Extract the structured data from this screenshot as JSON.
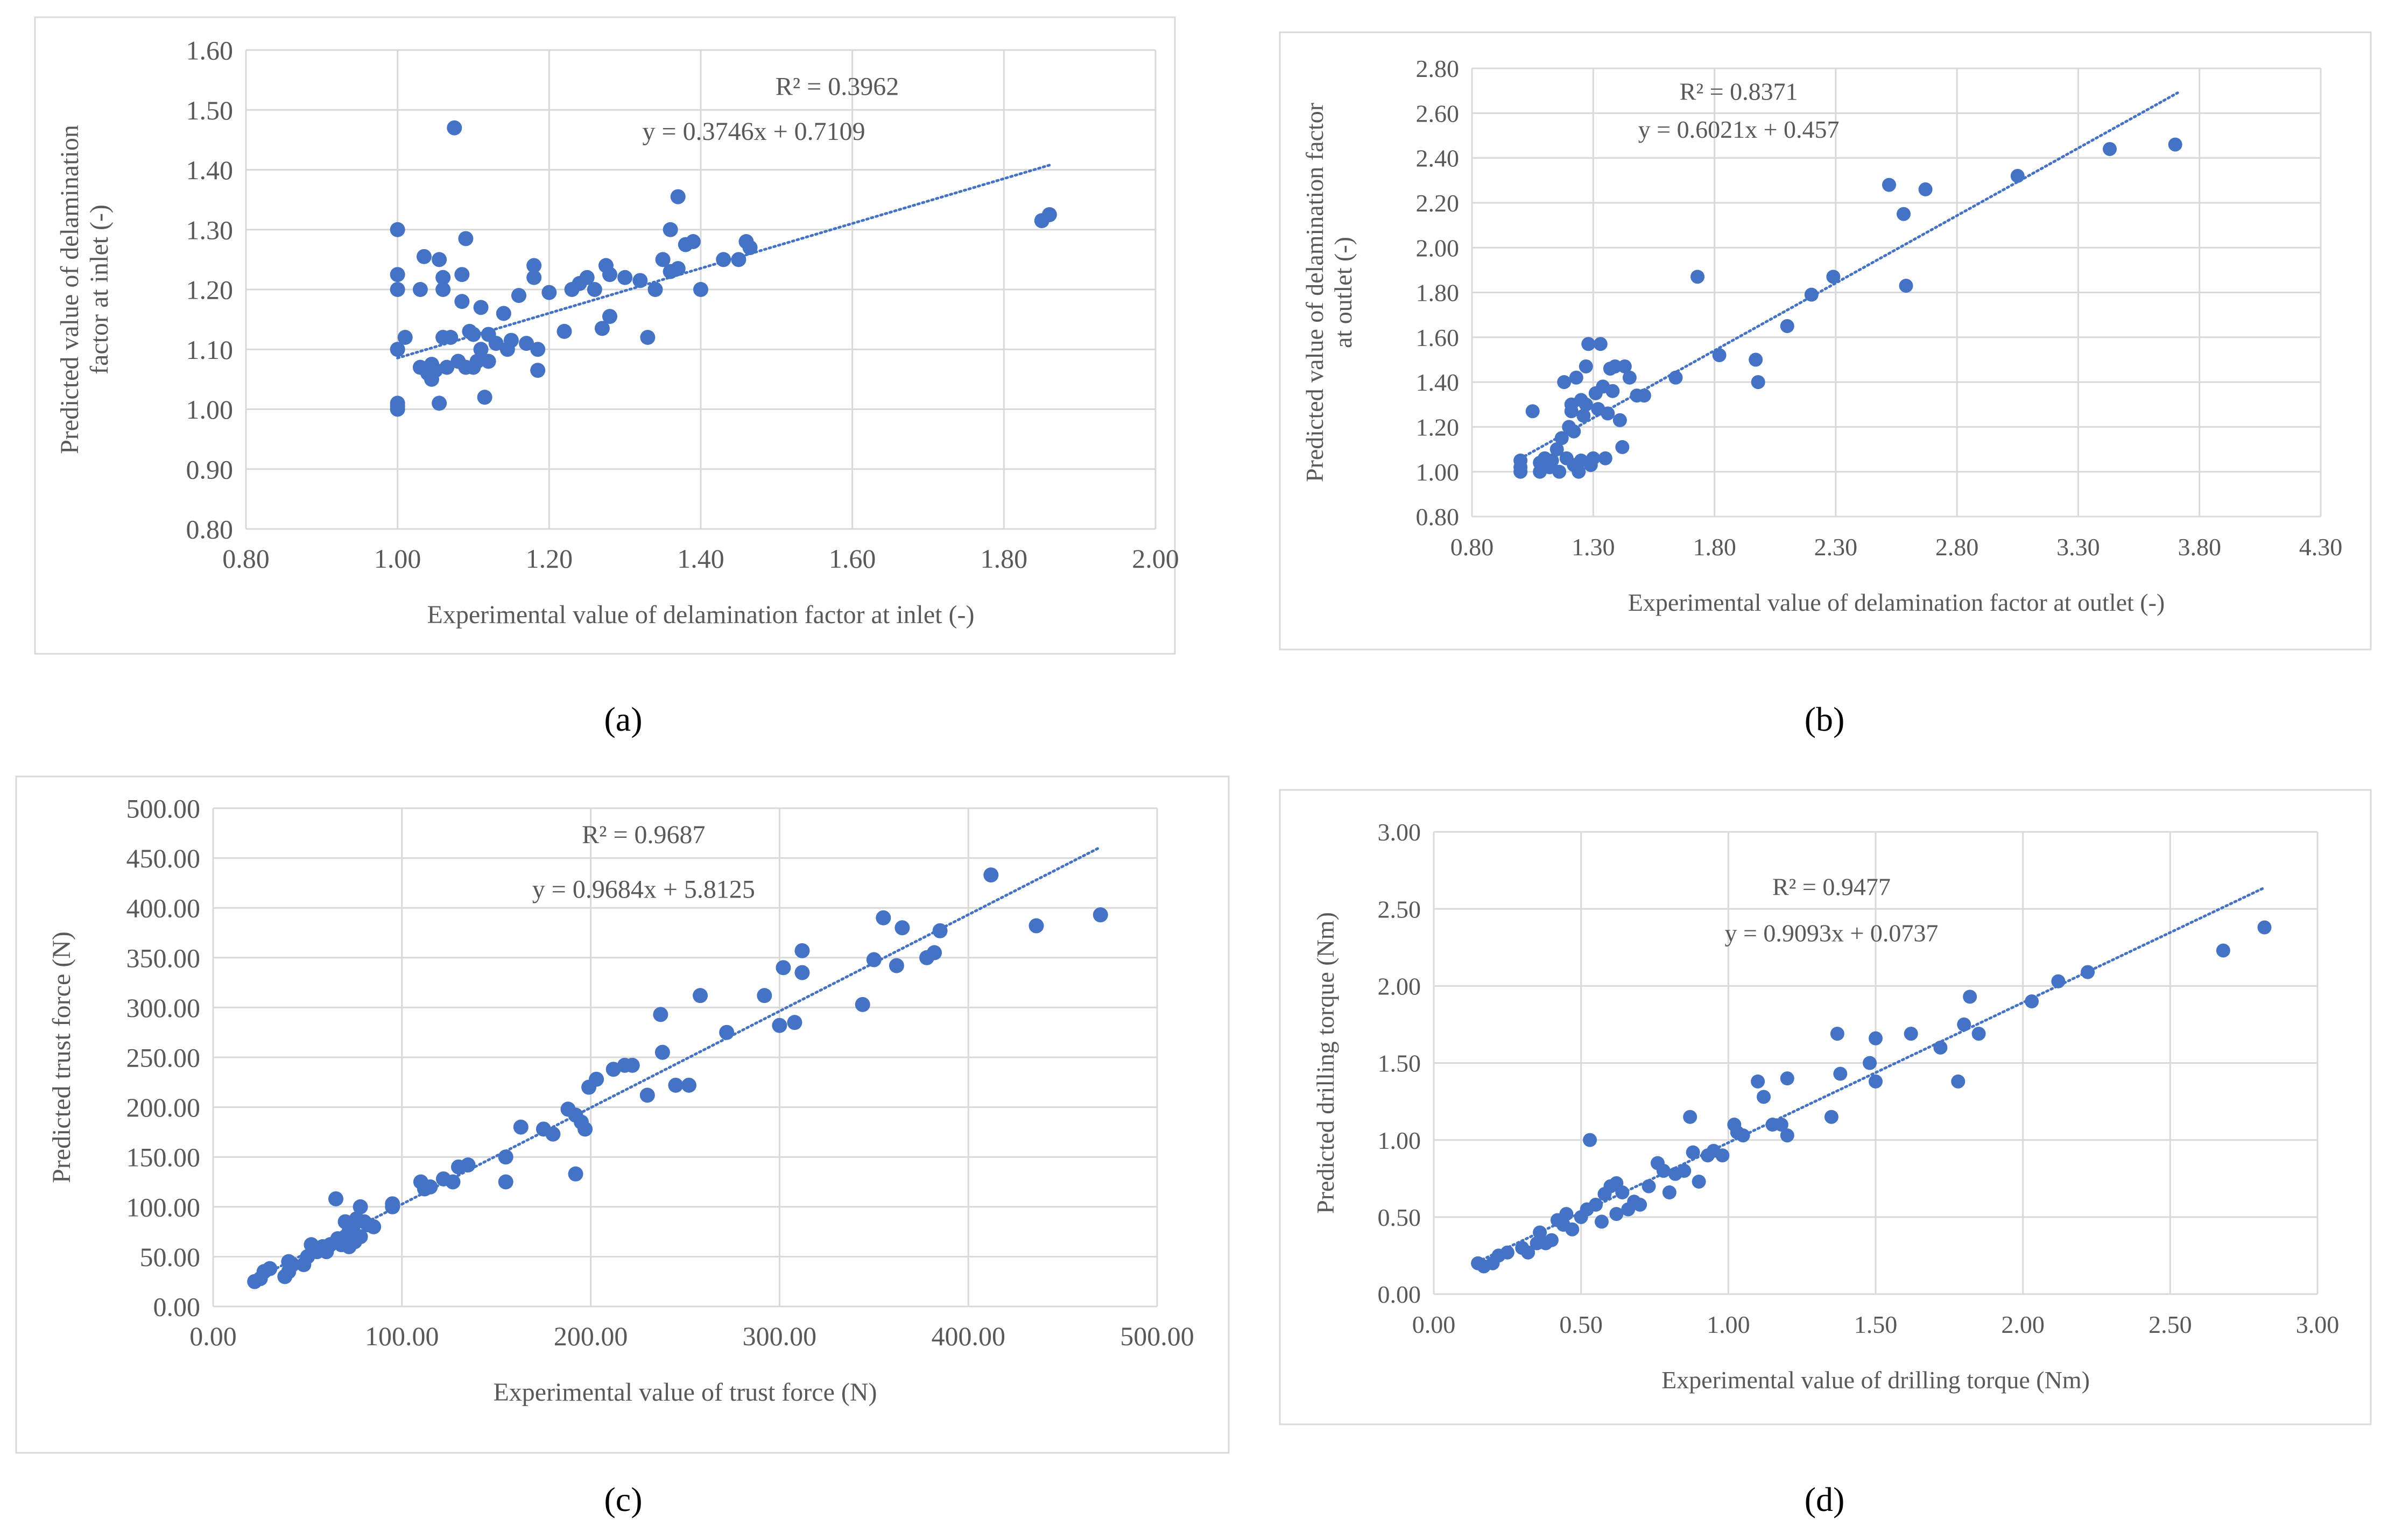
{
  "figure": {
    "panels": [
      "(a)",
      "(b)",
      "(c)",
      "(d)"
    ]
  },
  "colors": {
    "marker": "#4472c4",
    "trendline": "#4472c4",
    "grid": "#d9d9d9",
    "frame": "#d9d9d9",
    "text": "#595959"
  },
  "chart_data": [
    {
      "panel": "(a)",
      "type": "scatter",
      "xlabel": "Experimental value of delamination factor at inlet (-)",
      "ylabel": "Predicted value of delamination factor at inlet (-)",
      "ylabel_lines": [
        "Predicted value of delamination",
        "factor at inlet (-)"
      ],
      "xlim": [
        0.8,
        2.0
      ],
      "ylim": [
        0.8,
        1.6
      ],
      "xticks": [
        0.8,
        1.0,
        1.2,
        1.4,
        1.6,
        1.8,
        2.0
      ],
      "yticks": [
        0.8,
        0.9,
        1.0,
        1.1,
        1.2,
        1.3,
        1.4,
        1.5,
        1.6
      ],
      "xtick_labels": [
        "0.80",
        "1.00",
        "1.20",
        "1.40",
        "1.60",
        "1.80",
        "2.00"
      ],
      "ytick_labels": [
        "0.80",
        "0.90",
        "1.00",
        "1.10",
        "1.20",
        "1.30",
        "1.40",
        "1.50",
        "1.60"
      ],
      "r2_label": "R² = 0.3962",
      "equation_label": "y = 0.3746x + 0.7109",
      "trendline": {
        "slope": 0.3746,
        "intercept": 0.7109,
        "x_range": [
          1.0,
          1.86
        ]
      },
      "points": [
        [
          1.0,
          1.0
        ],
        [
          1.0,
          1.005
        ],
        [
          1.0,
          1.01
        ],
        [
          1.0,
          1.1
        ],
        [
          1.0,
          1.2
        ],
        [
          1.0,
          1.225
        ],
        [
          1.0,
          1.3
        ],
        [
          1.01,
          1.12
        ],
        [
          1.03,
          1.07
        ],
        [
          1.03,
          1.2
        ],
        [
          1.035,
          1.255
        ],
        [
          1.04,
          1.06
        ],
        [
          1.045,
          1.05
        ],
        [
          1.045,
          1.075
        ],
        [
          1.05,
          1.065
        ],
        [
          1.055,
          1.01
        ],
        [
          1.055,
          1.25
        ],
        [
          1.06,
          1.2
        ],
        [
          1.06,
          1.22
        ],
        [
          1.06,
          1.12
        ],
        [
          1.065,
          1.07
        ],
        [
          1.07,
          1.12
        ],
        [
          1.075,
          1.47
        ],
        [
          1.08,
          1.08
        ],
        [
          1.085,
          1.18
        ],
        [
          1.085,
          1.225
        ],
        [
          1.09,
          1.07
        ],
        [
          1.09,
          1.285
        ],
        [
          1.095,
          1.13
        ],
        [
          1.1,
          1.07
        ],
        [
          1.1,
          1.125
        ],
        [
          1.105,
          1.08
        ],
        [
          1.11,
          1.17
        ],
        [
          1.11,
          1.1
        ],
        [
          1.115,
          1.02
        ],
        [
          1.12,
          1.08
        ],
        [
          1.12,
          1.125
        ],
        [
          1.13,
          1.11
        ],
        [
          1.14,
          1.16
        ],
        [
          1.145,
          1.1
        ],
        [
          1.15,
          1.115
        ],
        [
          1.16,
          1.19
        ],
        [
          1.17,
          1.11
        ],
        [
          1.18,
          1.22
        ],
        [
          1.18,
          1.24
        ],
        [
          1.185,
          1.1
        ],
        [
          1.185,
          1.065
        ],
        [
          1.2,
          1.195
        ],
        [
          1.22,
          1.13
        ],
        [
          1.23,
          1.2
        ],
        [
          1.24,
          1.21
        ],
        [
          1.25,
          1.22
        ],
        [
          1.26,
          1.2
        ],
        [
          1.27,
          1.135
        ],
        [
          1.275,
          1.24
        ],
        [
          1.28,
          1.155
        ],
        [
          1.28,
          1.225
        ],
        [
          1.3,
          1.22
        ],
        [
          1.32,
          1.215
        ],
        [
          1.33,
          1.12
        ],
        [
          1.34,
          1.2
        ],
        [
          1.35,
          1.25
        ],
        [
          1.36,
          1.23
        ],
        [
          1.36,
          1.3
        ],
        [
          1.37,
          1.235
        ],
        [
          1.37,
          1.355
        ],
        [
          1.38,
          1.275
        ],
        [
          1.39,
          1.28
        ],
        [
          1.4,
          1.2
        ],
        [
          1.43,
          1.25
        ],
        [
          1.45,
          1.25
        ],
        [
          1.46,
          1.28
        ],
        [
          1.465,
          1.27
        ],
        [
          1.85,
          1.315
        ],
        [
          1.86,
          1.325
        ]
      ],
      "r2_pos": [
        1.58,
        1.525
      ],
      "eq_pos": [
        1.47,
        1.45
      ]
    },
    {
      "panel": "(b)",
      "type": "scatter",
      "xlabel": "Experimental value of delamination factor at outlet (-)",
      "ylabel": "Predicted value of delamination factor at outlet (-)",
      "ylabel_lines": [
        "Predicted value of delamination factor",
        "at outlet (-)"
      ],
      "xlim": [
        0.8,
        4.3
      ],
      "ylim": [
        0.8,
        2.8
      ],
      "xticks": [
        0.8,
        1.3,
        1.8,
        2.3,
        2.8,
        3.3,
        3.8,
        4.3
      ],
      "yticks": [
        0.8,
        1.0,
        1.2,
        1.4,
        1.6,
        1.8,
        2.0,
        2.2,
        2.4,
        2.6,
        2.8
      ],
      "xtick_labels": [
        "0.80",
        "1.30",
        "1.80",
        "2.30",
        "2.80",
        "3.30",
        "3.80",
        "4.30"
      ],
      "ytick_labels": [
        "0.80",
        "1.00",
        "1.20",
        "1.40",
        "1.60",
        "1.80",
        "2.00",
        "2.20",
        "2.40",
        "2.60",
        "2.80"
      ],
      "r2_label": "R² = 0.8371",
      "equation_label": "y = 0.6021x + 0.457",
      "trendline": {
        "slope": 0.6021,
        "intercept": 0.457,
        "x_range": [
          1.0,
          3.71
        ]
      },
      "points": [
        [
          1.0,
          1.0
        ],
        [
          1.0,
          1.02
        ],
        [
          1.0,
          1.05
        ],
        [
          1.05,
          1.27
        ],
        [
          1.08,
          1.0
        ],
        [
          1.08,
          1.04
        ],
        [
          1.1,
          1.06
        ],
        [
          1.12,
          1.02
        ],
        [
          1.13,
          1.05
        ],
        [
          1.15,
          1.1
        ],
        [
          1.16,
          1.0
        ],
        [
          1.17,
          1.15
        ],
        [
          1.18,
          1.4
        ],
        [
          1.19,
          1.06
        ],
        [
          1.2,
          1.2
        ],
        [
          1.21,
          1.27
        ],
        [
          1.21,
          1.3
        ],
        [
          1.22,
          1.03
        ],
        [
          1.22,
          1.18
        ],
        [
          1.23,
          1.42
        ],
        [
          1.24,
          1.0
        ],
        [
          1.25,
          1.05
        ],
        [
          1.25,
          1.32
        ],
        [
          1.26,
          1.25
        ],
        [
          1.27,
          1.3
        ],
        [
          1.27,
          1.47
        ],
        [
          1.28,
          1.57
        ],
        [
          1.29,
          1.03
        ],
        [
          1.3,
          1.06
        ],
        [
          1.31,
          1.35
        ],
        [
          1.32,
          1.28
        ],
        [
          1.33,
          1.57
        ],
        [
          1.34,
          1.38
        ],
        [
          1.35,
          1.06
        ],
        [
          1.36,
          1.26
        ],
        [
          1.37,
          1.46
        ],
        [
          1.38,
          1.36
        ],
        [
          1.39,
          1.47
        ],
        [
          1.41,
          1.23
        ],
        [
          1.42,
          1.11
        ],
        [
          1.43,
          1.47
        ],
        [
          1.45,
          1.42
        ],
        [
          1.48,
          1.34
        ],
        [
          1.51,
          1.34
        ],
        [
          1.64,
          1.42
        ],
        [
          1.73,
          1.87
        ],
        [
          1.82,
          1.52
        ],
        [
          1.97,
          1.5
        ],
        [
          1.98,
          1.4
        ],
        [
          2.1,
          1.65
        ],
        [
          2.2,
          1.79
        ],
        [
          2.29,
          1.87
        ],
        [
          2.52,
          2.28
        ],
        [
          2.58,
          2.15
        ],
        [
          2.59,
          1.83
        ],
        [
          2.67,
          2.26
        ],
        [
          3.05,
          2.32
        ],
        [
          3.43,
          2.44
        ],
        [
          3.7,
          2.46
        ]
      ],
      "r2_pos": [
        1.9,
        2.66
      ],
      "eq_pos": [
        1.9,
        2.49
      ]
    },
    {
      "panel": "(c)",
      "type": "scatter",
      "xlabel": "Experimental value of trust force (N)",
      "ylabel": "Predicted trust force (N)",
      "ylabel_lines": [
        "Predicted trust force (N)"
      ],
      "xlim": [
        0,
        500
      ],
      "ylim": [
        0,
        500
      ],
      "xticks": [
        0,
        100,
        200,
        300,
        400,
        500
      ],
      "yticks": [
        0,
        50,
        100,
        150,
        200,
        250,
        300,
        350,
        400,
        450,
        500
      ],
      "xtick_labels": [
        "0.00",
        "100.00",
        "200.00",
        "300.00",
        "400.00",
        "500.00"
      ],
      "ytick_labels": [
        "0.00",
        "50.00",
        "100.00",
        "150.00",
        "200.00",
        "250.00",
        "300.00",
        "350.00",
        "400.00",
        "450.00",
        "500.00"
      ],
      "r2_label": "R² = 0.9687",
      "equation_label": "y = 0.9684x + 5.8125",
      "trendline": {
        "slope": 0.9684,
        "intercept": 5.8125,
        "x_range": [
          20,
          470
        ]
      },
      "points": [
        [
          22,
          25
        ],
        [
          25,
          28
        ],
        [
          27,
          35
        ],
        [
          30,
          38
        ],
        [
          38,
          30
        ],
        [
          40,
          35
        ],
        [
          40,
          45
        ],
        [
          42,
          42
        ],
        [
          48,
          42
        ],
        [
          50,
          50
        ],
        [
          52,
          62
        ],
        [
          55,
          55
        ],
        [
          58,
          60
        ],
        [
          60,
          55
        ],
        [
          62,
          62
        ],
        [
          65,
          108
        ],
        [
          66,
          68
        ],
        [
          68,
          62
        ],
        [
          70,
          70
        ],
        [
          70,
          85
        ],
        [
          72,
          60
        ],
        [
          72,
          75
        ],
        [
          74,
          80
        ],
        [
          75,
          65
        ],
        [
          76,
          88
        ],
        [
          78,
          70
        ],
        [
          78,
          100
        ],
        [
          80,
          85
        ],
        [
          82,
          82
        ],
        [
          85,
          80
        ],
        [
          95,
          100
        ],
        [
          95,
          103
        ],
        [
          110,
          125
        ],
        [
          112,
          118
        ],
        [
          115,
          120
        ],
        [
          122,
          128
        ],
        [
          127,
          125
        ],
        [
          130,
          140
        ],
        [
          135,
          142
        ],
        [
          155,
          150
        ],
        [
          155,
          125
        ],
        [
          163,
          180
        ],
        [
          175,
          178
        ],
        [
          180,
          173
        ],
        [
          188,
          198
        ],
        [
          192,
          133
        ],
        [
          192,
          192
        ],
        [
          195,
          185
        ],
        [
          197,
          178
        ],
        [
          199,
          220
        ],
        [
          203,
          228
        ],
        [
          212,
          238
        ],
        [
          218,
          242
        ],
        [
          222,
          242
        ],
        [
          230,
          212
        ],
        [
          237,
          293
        ],
        [
          238,
          255
        ],
        [
          245,
          222
        ],
        [
          252,
          222
        ],
        [
          258,
          312
        ],
        [
          272,
          275
        ],
        [
          292,
          312
        ],
        [
          300,
          282
        ],
        [
          302,
          340
        ],
        [
          308,
          285
        ],
        [
          312,
          357
        ],
        [
          312,
          335
        ],
        [
          344,
          303
        ],
        [
          350,
          348
        ],
        [
          355,
          390
        ],
        [
          362,
          342
        ],
        [
          365,
          380
        ],
        [
          378,
          350
        ],
        [
          382,
          355
        ],
        [
          385,
          377
        ],
        [
          412,
          433
        ],
        [
          436,
          382
        ],
        [
          470,
          393
        ]
      ],
      "r2_pos": [
        228,
        465
      ],
      "eq_pos": [
        228,
        410
      ]
    },
    {
      "panel": "(d)",
      "type": "scatter",
      "xlabel": "Experimental value of drilling torque (Nm)",
      "ylabel": "Predicted drilling torque (Nm)",
      "ylabel_lines": [
        "Predicted drilling torque (Nm)"
      ],
      "xlim": [
        0,
        3
      ],
      "ylim": [
        0,
        3
      ],
      "xticks": [
        0,
        0.5,
        1.0,
        1.5,
        2.0,
        2.5,
        3.0
      ],
      "yticks": [
        0,
        0.5,
        1.0,
        1.5,
        2.0,
        2.5,
        3.0
      ],
      "xtick_labels": [
        "0.00",
        "0.50",
        "1.00",
        "1.50",
        "2.00",
        "2.50",
        "3.00"
      ],
      "ytick_labels": [
        "0.00",
        "0.50",
        "1.00",
        "1.50",
        "2.00",
        "2.50",
        "3.00"
      ],
      "r2_label": "R² = 0.9477",
      "equation_label": "y = 0.9093x + 0.0737",
      "trendline": {
        "slope": 0.9093,
        "intercept": 0.0737,
        "x_range": [
          0.15,
          2.82
        ]
      },
      "points": [
        [
          0.15,
          0.2
        ],
        [
          0.17,
          0.18
        ],
        [
          0.2,
          0.2
        ],
        [
          0.22,
          0.25
        ],
        [
          0.25,
          0.27
        ],
        [
          0.3,
          0.3
        ],
        [
          0.32,
          0.27
        ],
        [
          0.35,
          0.33
        ],
        [
          0.36,
          0.4
        ],
        [
          0.38,
          0.33
        ],
        [
          0.4,
          0.35
        ],
        [
          0.42,
          0.48
        ],
        [
          0.44,
          0.45
        ],
        [
          0.45,
          0.52
        ],
        [
          0.47,
          0.42
        ],
        [
          0.5,
          0.5
        ],
        [
          0.52,
          0.55
        ],
        [
          0.53,
          1.0
        ],
        [
          0.55,
          0.58
        ],
        [
          0.57,
          0.47
        ],
        [
          0.58,
          0.65
        ],
        [
          0.6,
          0.7
        ],
        [
          0.62,
          0.52
        ],
        [
          0.62,
          0.72
        ],
        [
          0.64,
          0.66
        ],
        [
          0.66,
          0.55
        ],
        [
          0.68,
          0.6
        ],
        [
          0.7,
          0.58
        ],
        [
          0.73,
          0.7
        ],
        [
          0.76,
          0.85
        ],
        [
          0.78,
          0.8
        ],
        [
          0.8,
          0.66
        ],
        [
          0.82,
          0.78
        ],
        [
          0.85,
          0.8
        ],
        [
          0.87,
          1.15
        ],
        [
          0.88,
          0.92
        ],
        [
          0.9,
          0.73
        ],
        [
          0.93,
          0.9
        ],
        [
          0.95,
          0.93
        ],
        [
          0.98,
          0.9
        ],
        [
          1.02,
          1.1
        ],
        [
          1.03,
          1.05
        ],
        [
          1.05,
          1.03
        ],
        [
          1.1,
          1.38
        ],
        [
          1.12,
          1.28
        ],
        [
          1.15,
          1.1
        ],
        [
          1.18,
          1.1
        ],
        [
          1.2,
          1.4
        ],
        [
          1.2,
          1.03
        ],
        [
          1.35,
          1.15
        ],
        [
          1.37,
          1.69
        ],
        [
          1.38,
          1.43
        ],
        [
          1.48,
          1.5
        ],
        [
          1.5,
          1.38
        ],
        [
          1.5,
          1.66
        ],
        [
          1.62,
          1.69
        ],
        [
          1.72,
          1.6
        ],
        [
          1.78,
          1.38
        ],
        [
          1.8,
          1.75
        ],
        [
          1.82,
          1.93
        ],
        [
          1.85,
          1.69
        ],
        [
          2.03,
          1.9
        ],
        [
          2.12,
          2.03
        ],
        [
          2.22,
          2.09
        ],
        [
          2.68,
          2.23
        ],
        [
          2.82,
          2.38
        ]
      ],
      "r2_pos": [
        1.35,
        2.59
      ],
      "eq_pos": [
        1.35,
        2.29
      ]
    }
  ]
}
